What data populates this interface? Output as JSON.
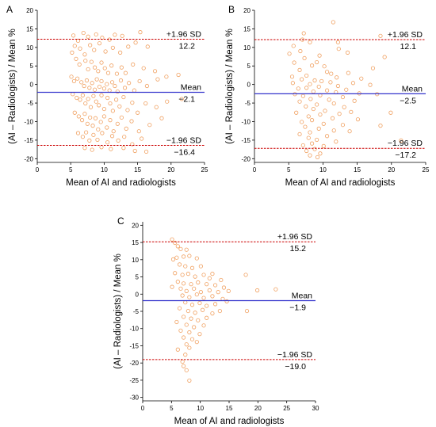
{
  "chart_data": [
    {
      "panel": "A",
      "type": "scatter",
      "xlabel": "Mean of AI and radiologists",
      "ylabel": "(AI – Radiologists) / Mean %",
      "xlim": [
        0,
        25
      ],
      "ylim": [
        -21,
        20
      ],
      "xticks": [
        0,
        5,
        10,
        15,
        20,
        25
      ],
      "yticks": [
        -20,
        -15,
        -10,
        -5,
        0,
        5,
        10,
        15,
        20
      ],
      "grid": false,
      "mean": {
        "label": "Mean",
        "value": -2.1,
        "display": "−2.1",
        "color": "#3333cc"
      },
      "upper": {
        "label": "+1.96 SD",
        "value": 12.2,
        "display": "12.2",
        "color": "#cc0000"
      },
      "lower": {
        "label": "−1.96 SD",
        "value": -16.4,
        "display": "−16.4",
        "color": "#cc0000"
      },
      "marker_color": "#f0a060",
      "points": [
        [
          5.4,
          13.2
        ],
        [
          6.1,
          11.8
        ],
        [
          6.9,
          13.9
        ],
        [
          7.6,
          12.9
        ],
        [
          8.8,
          13.5
        ],
        [
          9.7,
          12.6
        ],
        [
          10.8,
          12.1
        ],
        [
          11.6,
          13.4
        ],
        [
          12.7,
          13.1
        ],
        [
          15.4,
          14.1
        ],
        [
          5.6,
          10.4
        ],
        [
          5.2,
          8.6
        ],
        [
          6.4,
          9.7
        ],
        [
          7.1,
          8.1
        ],
        [
          7.9,
          10.6
        ],
        [
          8.5,
          9.3
        ],
        [
          9.3,
          11.1
        ],
        [
          10.2,
          8.9
        ],
        [
          11.3,
          9.9
        ],
        [
          12.4,
          8.6
        ],
        [
          13.6,
          10.2
        ],
        [
          14.7,
          11.3
        ],
        [
          16.5,
          10.2
        ],
        [
          5.8,
          6.9
        ],
        [
          6.3,
          5.4
        ],
        [
          7.2,
          6.4
        ],
        [
          7.6,
          4.1
        ],
        [
          8.1,
          6.1
        ],
        [
          8.6,
          4.6
        ],
        [
          9.1,
          3.6
        ],
        [
          9.6,
          5.9
        ],
        [
          10.1,
          4.4
        ],
        [
          10.6,
          3.1
        ],
        [
          11.1,
          5.1
        ],
        [
          11.9,
          2.9
        ],
        [
          12.6,
          4.6
        ],
        [
          13.2,
          3.1
        ],
        [
          14.3,
          5.4
        ],
        [
          15.9,
          4.4
        ],
        [
          17.6,
          3.6
        ],
        [
          19.3,
          2.1
        ],
        [
          21.1,
          2.6
        ],
        [
          5.1,
          2.1
        ],
        [
          5.5,
          0.9
        ],
        [
          6.0,
          1.6
        ],
        [
          6.6,
          0.6
        ],
        [
          7.0,
          -0.4
        ],
        [
          7.4,
          1.1
        ],
        [
          7.8,
          -0.9
        ],
        [
          8.2,
          0.4
        ],
        [
          8.6,
          -1.4
        ],
        [
          8.9,
          1.4
        ],
        [
          9.3,
          -0.6
        ],
        [
          9.6,
          0.9
        ],
        [
          10.0,
          -1.1
        ],
        [
          10.4,
          0.1
        ],
        [
          10.8,
          -1.6
        ],
        [
          11.2,
          0.6
        ],
        [
          11.6,
          -0.4
        ],
        [
          12.0,
          -1.9
        ],
        [
          12.5,
          1.1
        ],
        [
          13.1,
          -0.9
        ],
        [
          13.7,
          0.4
        ],
        [
          14.5,
          -1.6
        ],
        [
          15.3,
          0.9
        ],
        [
          16.4,
          -0.4
        ],
        [
          18.0,
          1.4
        ],
        [
          5.3,
          -2.6
        ],
        [
          5.9,
          -3.6
        ],
        [
          6.4,
          -4.1
        ],
        [
          6.8,
          -2.9
        ],
        [
          7.2,
          -5.1
        ],
        [
          7.6,
          -3.9
        ],
        [
          8.0,
          -6.1
        ],
        [
          8.4,
          -3.1
        ],
        [
          8.8,
          -4.6
        ],
        [
          9.2,
          -5.6
        ],
        [
          9.6,
          -2.9
        ],
        [
          10.0,
          -6.6
        ],
        [
          10.5,
          -3.6
        ],
        [
          10.9,
          -5.1
        ],
        [
          11.3,
          -7.1
        ],
        [
          11.8,
          -4.1
        ],
        [
          12.3,
          -5.9
        ],
        [
          12.9,
          -3.4
        ],
        [
          13.5,
          -6.9
        ],
        [
          14.2,
          -4.9
        ],
        [
          15.0,
          -7.6
        ],
        [
          16.2,
          -5.1
        ],
        [
          17.8,
          -6.1
        ],
        [
          19.4,
          -4.6
        ],
        [
          21.6,
          -3.9
        ],
        [
          5.6,
          -7.6
        ],
        [
          6.2,
          -8.6
        ],
        [
          6.7,
          -9.6
        ],
        [
          7.1,
          -7.9
        ],
        [
          7.5,
          -10.6
        ],
        [
          7.9,
          -8.9
        ],
        [
          8.3,
          -11.1
        ],
        [
          8.7,
          -9.1
        ],
        [
          9.1,
          -12.1
        ],
        [
          9.5,
          -10.1
        ],
        [
          10.0,
          -8.6
        ],
        [
          10.4,
          -11.6
        ],
        [
          10.9,
          -9.6
        ],
        [
          11.4,
          -12.6
        ],
        [
          12.0,
          -10.6
        ],
        [
          12.6,
          -8.9
        ],
        [
          13.3,
          -11.9
        ],
        [
          14.1,
          -9.9
        ],
        [
          15.2,
          -12.6
        ],
        [
          16.8,
          -10.9
        ],
        [
          18.6,
          -9.1
        ],
        [
          6.1,
          -13.1
        ],
        [
          6.8,
          -14.1
        ],
        [
          7.3,
          -12.9
        ],
        [
          7.8,
          -15.1
        ],
        [
          8.4,
          -13.6
        ],
        [
          9.0,
          -14.9
        ],
        [
          9.7,
          -13.1
        ],
        [
          10.5,
          -15.6
        ],
        [
          11.2,
          -13.9
        ],
        [
          12.1,
          -15.1
        ],
        [
          13.0,
          -14.1
        ],
        [
          14.2,
          -16.1
        ],
        [
          15.6,
          -14.6
        ],
        [
          7.1,
          -17.1
        ],
        [
          8.2,
          -17.6
        ],
        [
          9.6,
          -16.9
        ],
        [
          11.0,
          -17.4
        ],
        [
          12.9,
          -17.1
        ],
        [
          14.6,
          -17.9
        ],
        [
          16.3,
          -18.1
        ]
      ]
    },
    {
      "panel": "B",
      "type": "scatter",
      "xlabel": "Mean of AI and radiologists",
      "ylabel": "(AI – Radiologists) / Mean %",
      "xlim": [
        0,
        25
      ],
      "ylim": [
        -21,
        20
      ],
      "xticks": [
        0,
        5,
        10,
        15,
        20,
        25
      ],
      "yticks": [
        -20,
        -15,
        -10,
        -5,
        0,
        5,
        10,
        15,
        20
      ],
      "grid": false,
      "mean": {
        "label": "Mean",
        "value": -2.5,
        "display": "−2.5",
        "color": "#3333cc"
      },
      "upper": {
        "label": "+1.96 SD",
        "value": 12.1,
        "display": "12.1",
        "color": "#cc0000"
      },
      "lower": {
        "label": "−1.96 SD",
        "value": -17.2,
        "display": "−17.2",
        "color": "#cc0000"
      },
      "marker_color": "#f0a060",
      "points": [
        [
          11.5,
          16.8
        ],
        [
          7.2,
          13.8
        ],
        [
          18.4,
          13.1
        ],
        [
          7.0,
          12.1
        ],
        [
          8.1,
          11.4
        ],
        [
          12.2,
          11.4
        ],
        [
          5.7,
          10.4
        ],
        [
          12.3,
          9.6
        ],
        [
          6.7,
          9.0
        ],
        [
          5.1,
          8.3
        ],
        [
          13.6,
          8.6
        ],
        [
          9.5,
          7.8
        ],
        [
          19.0,
          7.4
        ],
        [
          7.3,
          7.1
        ],
        [
          9.1,
          6.0
        ],
        [
          5.8,
          5.9
        ],
        [
          8.4,
          5.1
        ],
        [
          10.2,
          4.9
        ],
        [
          17.3,
          4.4
        ],
        [
          6.6,
          3.9
        ],
        [
          10.6,
          3.4
        ],
        [
          13.7,
          3.1
        ],
        [
          11.2,
          2.9
        ],
        [
          5.5,
          2.1
        ],
        [
          7.6,
          2.4
        ],
        [
          12.0,
          1.9
        ],
        [
          15.6,
          1.6
        ],
        [
          6.9,
          1.4
        ],
        [
          8.8,
          1.1
        ],
        [
          9.8,
          0.9
        ],
        [
          11.1,
          0.6
        ],
        [
          5.6,
          0.4
        ],
        [
          14.4,
          0.4
        ],
        [
          8.1,
          0.1
        ],
        [
          16.9,
          -0.1
        ],
        [
          12.2,
          -0.4
        ],
        [
          9.4,
          -0.6
        ],
        [
          7.6,
          -0.9
        ],
        [
          6.4,
          -1.1
        ],
        [
          13.4,
          -1.4
        ],
        [
          10.6,
          -1.6
        ],
        [
          8.6,
          -1.9
        ],
        [
          11.9,
          -2.1
        ],
        [
          15.3,
          -2.4
        ],
        [
          5.9,
          -2.6
        ],
        [
          9.6,
          -2.9
        ],
        [
          17.9,
          -2.6
        ],
        [
          7.1,
          -3.1
        ],
        [
          12.9,
          -3.4
        ],
        [
          8.2,
          -3.9
        ],
        [
          10.9,
          -4.1
        ],
        [
          14.6,
          -4.4
        ],
        [
          6.6,
          -4.6
        ],
        [
          11.6,
          -5.1
        ],
        [
          9.1,
          -5.4
        ],
        [
          7.5,
          -5.9
        ],
        [
          13.1,
          -6.1
        ],
        [
          8.6,
          -6.6
        ],
        [
          10.3,
          -7.1
        ],
        [
          6.1,
          -7.6
        ],
        [
          12.4,
          -7.9
        ],
        [
          14.1,
          -7.4
        ],
        [
          9.6,
          -8.1
        ],
        [
          19.9,
          -7.6
        ],
        [
          7.9,
          -8.6
        ],
        [
          11.4,
          -9.1
        ],
        [
          8.4,
          -9.6
        ],
        [
          15.1,
          -9.4
        ],
        [
          6.9,
          -10.1
        ],
        [
          10.1,
          -10.6
        ],
        [
          12.9,
          -10.9
        ],
        [
          18.4,
          -11.1
        ],
        [
          7.4,
          -11.4
        ],
        [
          9.4,
          -11.9
        ],
        [
          11.6,
          -12.4
        ],
        [
          13.9,
          -12.6
        ],
        [
          8.1,
          -12.9
        ],
        [
          6.6,
          -13.4
        ],
        [
          10.6,
          -13.9
        ],
        [
          7.9,
          -14.4
        ],
        [
          9.1,
          -14.9
        ],
        [
          11.9,
          -15.4
        ],
        [
          21.4,
          -15.1
        ],
        [
          8.4,
          -15.9
        ],
        [
          7.1,
          -16.4
        ],
        [
          10.1,
          -16.6
        ],
        [
          8.8,
          -17.4
        ],
        [
          7.6,
          -17.9
        ],
        [
          9.6,
          -18.6
        ],
        [
          8.1,
          -19.1
        ],
        [
          9.2,
          -19.6
        ]
      ]
    },
    {
      "panel": "C",
      "type": "scatter",
      "xlabel": "Mean of AI and radiologists",
      "ylabel": "(AI – Radiologists) / Mean %",
      "xlim": [
        0,
        30
      ],
      "ylim": [
        -31,
        21
      ],
      "xticks": [
        0,
        5,
        10,
        15,
        20,
        25,
        30
      ],
      "yticks": [
        -30,
        -25,
        -20,
        -15,
        -10,
        -5,
        0,
        5,
        10,
        15,
        20
      ],
      "grid": false,
      "mean": {
        "label": "Mean",
        "value": -1.9,
        "display": "−1.9",
        "color": "#3333cc"
      },
      "upper": {
        "label": "+1.96 SD",
        "value": 15.2,
        "display": "15.2",
        "color": "#cc0000"
      },
      "lower": {
        "label": "−1.96 SD",
        "value": -19.0,
        "display": "−19.0",
        "color": "#cc0000"
      },
      "marker_color": "#f0a060",
      "points": [
        [
          5.1,
          15.9
        ],
        [
          5.6,
          14.9
        ],
        [
          6.1,
          13.9
        ],
        [
          6.6,
          13.1
        ],
        [
          7.6,
          12.9
        ],
        [
          5.3,
          10.1
        ],
        [
          5.9,
          10.6
        ],
        [
          7.1,
          10.9
        ],
        [
          8.1,
          11.1
        ],
        [
          9.4,
          10.4
        ],
        [
          6.4,
          8.6
        ],
        [
          7.4,
          8.1
        ],
        [
          8.6,
          7.6
        ],
        [
          10.1,
          8.1
        ],
        [
          5.6,
          6.1
        ],
        [
          6.9,
          5.6
        ],
        [
          7.9,
          5.9
        ],
        [
          9.1,
          5.1
        ],
        [
          10.6,
          5.6
        ],
        [
          11.6,
          4.6
        ],
        [
          12.1,
          5.9
        ],
        [
          13.6,
          4.1
        ],
        [
          17.9,
          5.6
        ],
        [
          6.1,
          3.6
        ],
        [
          7.1,
          3.1
        ],
        [
          8.4,
          2.9
        ],
        [
          9.6,
          3.4
        ],
        [
          11.1,
          2.9
        ],
        [
          12.6,
          2.6
        ],
        [
          5.1,
          2.1
        ],
        [
          6.6,
          1.6
        ],
        [
          7.6,
          0.9
        ],
        [
          8.9,
          1.6
        ],
        [
          10.1,
          0.6
        ],
        [
          11.6,
          1.1
        ],
        [
          13.1,
          0.6
        ],
        [
          14.1,
          1.9
        ],
        [
          14.9,
          0.9
        ],
        [
          19.9,
          1.1
        ],
        [
          23.1,
          1.4
        ],
        [
          6.9,
          -0.4
        ],
        [
          8.1,
          -0.9
        ],
        [
          9.4,
          -0.1
        ],
        [
          10.6,
          -1.1
        ],
        [
          12.1,
          -0.6
        ],
        [
          13.9,
          -1.4
        ],
        [
          7.4,
          -2.4
        ],
        [
          8.6,
          -3.1
        ],
        [
          9.9,
          -2.6
        ],
        [
          11.1,
          -3.4
        ],
        [
          12.6,
          -2.9
        ],
        [
          14.6,
          -2.1
        ],
        [
          6.4,
          -4.1
        ],
        [
          7.9,
          -4.9
        ],
        [
          9.1,
          -5.4
        ],
        [
          10.4,
          -4.6
        ],
        [
          12.1,
          -5.6
        ],
        [
          13.4,
          -4.9
        ],
        [
          18.1,
          -4.9
        ],
        [
          7.1,
          -6.6
        ],
        [
          8.4,
          -7.1
        ],
        [
          9.6,
          -7.6
        ],
        [
          11.1,
          -6.9
        ],
        [
          5.9,
          -8.1
        ],
        [
          7.6,
          -8.9
        ],
        [
          8.9,
          -9.6
        ],
        [
          10.6,
          -9.1
        ],
        [
          6.6,
          -10.6
        ],
        [
          8.1,
          -11.1
        ],
        [
          9.9,
          -11.6
        ],
        [
          7.1,
          -12.6
        ],
        [
          8.6,
          -13.1
        ],
        [
          9.4,
          -13.9
        ],
        [
          7.6,
          -14.6
        ],
        [
          8.1,
          -15.6
        ],
        [
          6.1,
          -16.1
        ],
        [
          7.4,
          -17.6
        ],
        [
          6.9,
          -19.6
        ],
        [
          7.1,
          -20.9
        ],
        [
          7.6,
          -22.1
        ],
        [
          8.1,
          -25.1
        ]
      ]
    }
  ]
}
